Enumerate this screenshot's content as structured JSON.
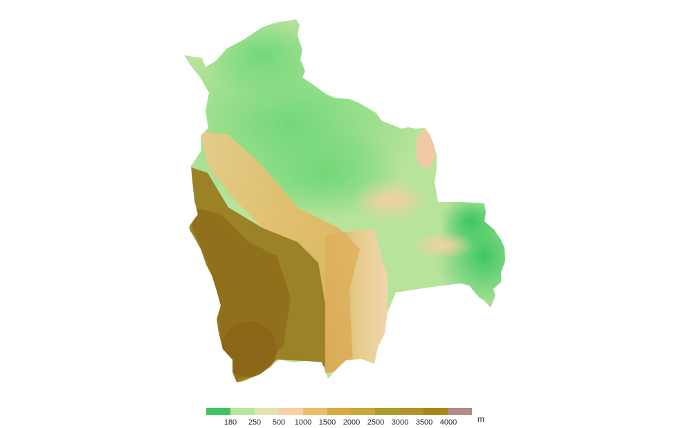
{
  "map": {
    "region": "Bolivia",
    "colors": {
      "lowland": "#3cc45f",
      "plain": "#6fd776",
      "savanna": "#b7e49a",
      "foothill": "#f7d3a6",
      "highland_light": "#e3b45f",
      "altiplano": "#9b8225",
      "altiplano_dark": "#8e6c1a"
    }
  },
  "legend": {
    "swatch_colors": [
      "#3ec461",
      "#b6e69b",
      "#e3e3b0",
      "#f7d1a4",
      "#ebbc6a",
      "#dca83f",
      "#c9a836",
      "#a89c2b",
      "#b1932a",
      "#a98616",
      "#b28b89"
    ],
    "labels": [
      "180",
      "250",
      "500",
      "1000",
      "1500",
      "2000",
      "2500",
      "3000",
      "3500",
      "4000"
    ],
    "unit": "m"
  }
}
